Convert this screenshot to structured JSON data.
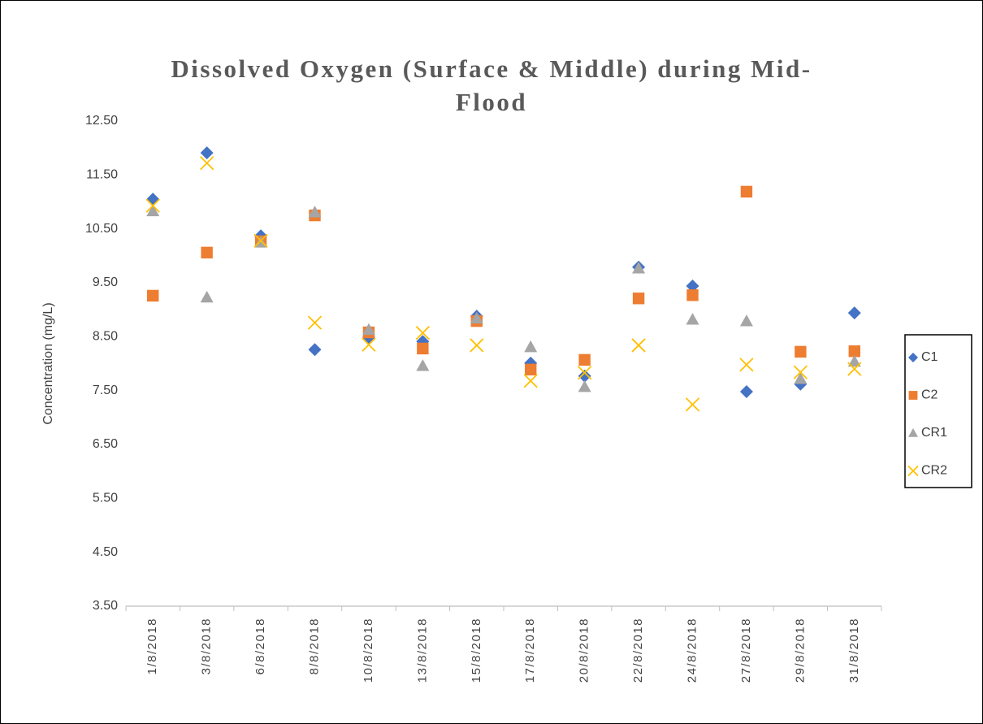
{
  "chart_data": {
    "type": "scatter",
    "title": "Dissolved Oxygen (Surface & Middle) during Mid-Flood",
    "y_label": "Concentration (mg/L)",
    "categories": [
      "1/8/2018",
      "3/8/2018",
      "6/8/2018",
      "8/8/2018",
      "10/8/2018",
      "13/8/2018",
      "15/8/2018",
      "17/8/2018",
      "20/8/2018",
      "22/8/2018",
      "24/8/2018",
      "27/8/2018",
      "29/8/2018",
      "31/8/2018"
    ],
    "series": [
      {
        "name": "C1",
        "color": "#4472c4",
        "marker": "diamond",
        "values": [
          11.05,
          11.91,
          10.37,
          8.26,
          8.49,
          8.41,
          8.88,
          8.01,
          7.77,
          9.79,
          9.44,
          7.48,
          7.62,
          8.94
        ]
      },
      {
        "name": "C2",
        "color": "#ed7d31",
        "marker": "square",
        "values": [
          9.26,
          10.06,
          10.27,
          10.75,
          8.58,
          8.28,
          8.79,
          7.89,
          8.07,
          9.21,
          9.27,
          11.19,
          8.22,
          8.23
        ]
      },
      {
        "name": "CR1",
        "color": "#a5a5a5",
        "marker": "triangle",
        "values": [
          10.83,
          9.23,
          10.25,
          10.81,
          8.63,
          7.96,
          8.84,
          8.31,
          7.57,
          9.77,
          8.82,
          8.79,
          7.72,
          8.04
        ]
      },
      {
        "name": "CR2",
        "color": "#ffc000",
        "marker": "x",
        "values": [
          10.93,
          11.72,
          10.28,
          8.76,
          8.35,
          8.57,
          8.34,
          7.68,
          7.83,
          8.34,
          7.24,
          7.98,
          7.84,
          7.9
        ]
      }
    ],
    "ylim": [
      3.5,
      12.5
    ],
    "yticks": [
      {
        "value": 3.5,
        "label": "3.50"
      },
      {
        "value": 4.5,
        "label": "4.50"
      },
      {
        "value": 5.5,
        "label": "5.50"
      },
      {
        "value": 6.5,
        "label": "6.50"
      },
      {
        "value": 7.5,
        "label": "7.50"
      },
      {
        "value": 8.5,
        "label": "8.50"
      },
      {
        "value": 9.5,
        "label": "9.50"
      },
      {
        "value": 10.5,
        "label": "10.50"
      },
      {
        "value": 11.5,
        "label": "11.50"
      },
      {
        "value": 12.5,
        "label": "12.50"
      }
    ],
    "grid": false,
    "legend": "right"
  }
}
